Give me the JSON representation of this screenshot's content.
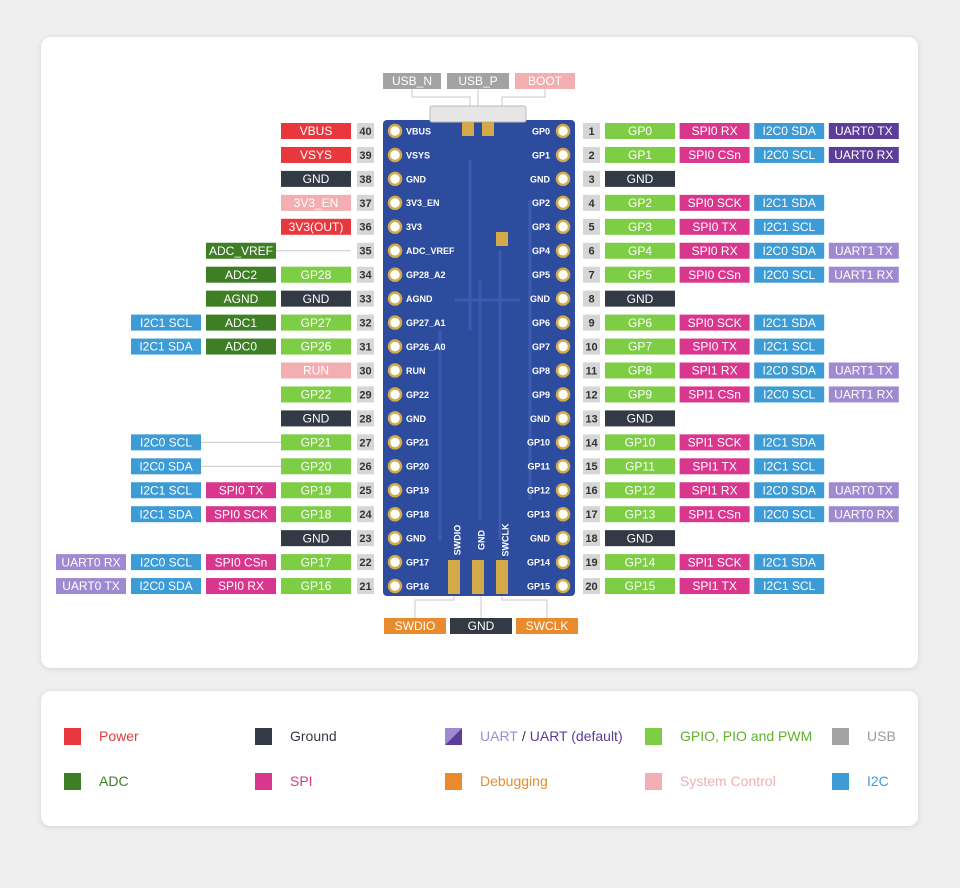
{
  "top_labels": [
    {
      "text": "USB_N",
      "color": "#a3a3a3"
    },
    {
      "text": "USB_P",
      "color": "#a3a3a3"
    },
    {
      "text": "BOOT",
      "color": "#f2aeb0"
    }
  ],
  "bottom_labels": [
    {
      "text": "SWDIO",
      "color": "#e98a2c"
    },
    {
      "text": "GND",
      "color": "#333a45"
    },
    {
      "text": "SWCLK",
      "color": "#e98a2c"
    }
  ],
  "board_bottom_pads": [
    "SWDIO",
    "GND",
    "SWCLK"
  ],
  "left_pins": [
    {
      "number": 40,
      "board_label": "VBUS",
      "labels": [
        {
          "text": "VBUS",
          "color": "#e8383d"
        }
      ]
    },
    {
      "number": 39,
      "board_label": "VSYS",
      "labels": [
        {
          "text": "VSYS",
          "color": "#e8383d"
        }
      ]
    },
    {
      "number": 38,
      "board_label": "GND",
      "labels": [
        {
          "text": "GND",
          "color": "#333a45"
        }
      ]
    },
    {
      "number": 37,
      "board_label": "3V3_EN",
      "labels": [
        {
          "text": "3V3_EN",
          "color": "#f2aeb0"
        }
      ]
    },
    {
      "number": 36,
      "board_label": "3V3",
      "labels": [
        {
          "text": "3V3(OUT)",
          "color": "#e8383d"
        }
      ]
    },
    {
      "number": 35,
      "board_label": "ADC_VREF",
      "labels": [
        null,
        {
          "text": "ADC_VREF",
          "color": "#3e7f26"
        }
      ]
    },
    {
      "number": 34,
      "board_label": "GP28_A2",
      "labels": [
        {
          "text": "GP28",
          "color": "#7dcd45"
        },
        {
          "text": "ADC2",
          "color": "#3e7f26"
        }
      ]
    },
    {
      "number": 33,
      "board_label": "AGND",
      "labels": [
        {
          "text": "GND",
          "color": "#333a45"
        },
        {
          "text": "AGND",
          "color": "#3e7f26"
        }
      ]
    },
    {
      "number": 32,
      "board_label": "GP27_A1",
      "labels": [
        {
          "text": "GP27",
          "color": "#7dcd45"
        },
        {
          "text": "ADC1",
          "color": "#3e7f26"
        },
        {
          "text": "I2C1 SCL",
          "color": "#3d9bd6"
        }
      ]
    },
    {
      "number": 31,
      "board_label": "GP26_A0",
      "labels": [
        {
          "text": "GP26",
          "color": "#7dcd45"
        },
        {
          "text": "ADC0",
          "color": "#3e7f26"
        },
        {
          "text": "I2C1 SDA",
          "color": "#3d9bd6"
        }
      ]
    },
    {
      "number": 30,
      "board_label": "RUN",
      "labels": [
        {
          "text": "RUN",
          "color": "#f2aeb0"
        }
      ]
    },
    {
      "number": 29,
      "board_label": "GP22",
      "labels": [
        {
          "text": "GP22",
          "color": "#7dcd45"
        }
      ]
    },
    {
      "number": 28,
      "board_label": "GND",
      "labels": [
        {
          "text": "GND",
          "color": "#333a45"
        }
      ]
    },
    {
      "number": 27,
      "board_label": "GP21",
      "labels": [
        {
          "text": "GP21",
          "color": "#7dcd45"
        },
        null,
        {
          "text": "I2C0 SCL",
          "color": "#3d9bd6"
        }
      ]
    },
    {
      "number": 26,
      "board_label": "GP20",
      "labels": [
        {
          "text": "GP20",
          "color": "#7dcd45"
        },
        null,
        {
          "text": "I2C0 SDA",
          "color": "#3d9bd6"
        }
      ]
    },
    {
      "number": 25,
      "board_label": "GP19",
      "labels": [
        {
          "text": "GP19",
          "color": "#7dcd45"
        },
        {
          "text": "SPI0 TX",
          "color": "#d8378d"
        },
        {
          "text": "I2C1 SCL",
          "color": "#3d9bd6"
        }
      ]
    },
    {
      "number": 24,
      "board_label": "GP18",
      "labels": [
        {
          "text": "GP18",
          "color": "#7dcd45"
        },
        {
          "text": "SPI0 SCK",
          "color": "#d8378d"
        },
        {
          "text": "I2C1 SDA",
          "color": "#3d9bd6"
        }
      ]
    },
    {
      "number": 23,
      "board_label": "GND",
      "labels": [
        {
          "text": "GND",
          "color": "#333a45"
        }
      ]
    },
    {
      "number": 22,
      "board_label": "GP17",
      "labels": [
        {
          "text": "GP17",
          "color": "#7dcd45"
        },
        {
          "text": "SPI0 CSn",
          "color": "#d8378d"
        },
        {
          "text": "I2C0 SCL",
          "color": "#3d9bd6"
        },
        {
          "text": "UART0 RX",
          "color": "#9f8ad2"
        }
      ]
    },
    {
      "number": 21,
      "board_label": "GP16",
      "labels": [
        {
          "text": "GP16",
          "color": "#7dcd45"
        },
        {
          "text": "SPI0 RX",
          "color": "#d8378d"
        },
        {
          "text": "I2C0 SDA",
          "color": "#3d9bd6"
        },
        {
          "text": "UART0 TX",
          "color": "#9f8ad2"
        }
      ]
    }
  ],
  "right_pins": [
    {
      "number": 1,
      "board_label": "GP0",
      "labels": [
        {
          "text": "GP0",
          "color": "#7dcd45"
        },
        {
          "text": "SPI0 RX",
          "color": "#d8378d"
        },
        {
          "text": "I2C0 SDA",
          "color": "#3d9bd6"
        },
        {
          "text": "UART0 TX",
          "color": "#5c3d9a"
        }
      ]
    },
    {
      "number": 2,
      "board_label": "GP1",
      "labels": [
        {
          "text": "GP1",
          "color": "#7dcd45"
        },
        {
          "text": "SPI0 CSn",
          "color": "#d8378d"
        },
        {
          "text": "I2C0 SCL",
          "color": "#3d9bd6"
        },
        {
          "text": "UART0 RX",
          "color": "#5c3d9a"
        }
      ]
    },
    {
      "number": 3,
      "board_label": "GND",
      "labels": [
        {
          "text": "GND",
          "color": "#333a45"
        }
      ]
    },
    {
      "number": 4,
      "board_label": "GP2",
      "labels": [
        {
          "text": "GP2",
          "color": "#7dcd45"
        },
        {
          "text": "SPI0 SCK",
          "color": "#d8378d"
        },
        {
          "text": "I2C1 SDA",
          "color": "#3d9bd6"
        }
      ]
    },
    {
      "number": 5,
      "board_label": "GP3",
      "labels": [
        {
          "text": "GP3",
          "color": "#7dcd45"
        },
        {
          "text": "SPI0 TX",
          "color": "#d8378d"
        },
        {
          "text": "I2C1 SCL",
          "color": "#3d9bd6"
        }
      ]
    },
    {
      "number": 6,
      "board_label": "GP4",
      "labels": [
        {
          "text": "GP4",
          "color": "#7dcd45"
        },
        {
          "text": "SPI0 RX",
          "color": "#d8378d"
        },
        {
          "text": "I2C0 SDA",
          "color": "#3d9bd6"
        },
        {
          "text": "UART1 TX",
          "color": "#9f8ad2"
        }
      ]
    },
    {
      "number": 7,
      "board_label": "GP5",
      "labels": [
        {
          "text": "GP5",
          "color": "#7dcd45"
        },
        {
          "text": "SPI0 CSn",
          "color": "#d8378d"
        },
        {
          "text": "I2C0 SCL",
          "color": "#3d9bd6"
        },
        {
          "text": "UART1 RX",
          "color": "#9f8ad2"
        }
      ]
    },
    {
      "number": 8,
      "board_label": "GND",
      "labels": [
        {
          "text": "GND",
          "color": "#333a45"
        }
      ]
    },
    {
      "number": 9,
      "board_label": "GP6",
      "labels": [
        {
          "text": "GP6",
          "color": "#7dcd45"
        },
        {
          "text": "SPI0 SCK",
          "color": "#d8378d"
        },
        {
          "text": "I2C1 SDA",
          "color": "#3d9bd6"
        }
      ]
    },
    {
      "number": 10,
      "board_label": "GP7",
      "labels": [
        {
          "text": "GP7",
          "color": "#7dcd45"
        },
        {
          "text": "SPI0 TX",
          "color": "#d8378d"
        },
        {
          "text": "I2C1 SCL",
          "color": "#3d9bd6"
        }
      ]
    },
    {
      "number": 11,
      "board_label": "GP8",
      "labels": [
        {
          "text": "GP8",
          "color": "#7dcd45"
        },
        {
          "text": "SPI1 RX",
          "color": "#d8378d"
        },
        {
          "text": "I2C0 SDA",
          "color": "#3d9bd6"
        },
        {
          "text": "UART1 TX",
          "color": "#9f8ad2"
        }
      ]
    },
    {
      "number": 12,
      "board_label": "GP9",
      "labels": [
        {
          "text": "GP9",
          "color": "#7dcd45"
        },
        {
          "text": "SPI1 CSn",
          "color": "#d8378d"
        },
        {
          "text": "I2C0 SCL",
          "color": "#3d9bd6"
        },
        {
          "text": "UART1 RX",
          "color": "#9f8ad2"
        }
      ]
    },
    {
      "number": 13,
      "board_label": "GND",
      "labels": [
        {
          "text": "GND",
          "color": "#333a45"
        }
      ]
    },
    {
      "number": 14,
      "board_label": "GP10",
      "labels": [
        {
          "text": "GP10",
          "color": "#7dcd45"
        },
        {
          "text": "SPI1 SCK",
          "color": "#d8378d"
        },
        {
          "text": "I2C1 SDA",
          "color": "#3d9bd6"
        }
      ]
    },
    {
      "number": 15,
      "board_label": "GP11",
      "labels": [
        {
          "text": "GP11",
          "color": "#7dcd45"
        },
        {
          "text": "SPI1 TX",
          "color": "#d8378d"
        },
        {
          "text": "I2C1 SCL",
          "color": "#3d9bd6"
        }
      ]
    },
    {
      "number": 16,
      "board_label": "GP12",
      "labels": [
        {
          "text": "GP12",
          "color": "#7dcd45"
        },
        {
          "text": "SPI1 RX",
          "color": "#d8378d"
        },
        {
          "text": "I2C0 SDA",
          "color": "#3d9bd6"
        },
        {
          "text": "UART0 TX",
          "color": "#9f8ad2"
        }
      ]
    },
    {
      "number": 17,
      "board_label": "GP13",
      "labels": [
        {
          "text": "GP13",
          "color": "#7dcd45"
        },
        {
          "text": "SPI1 CSn",
          "color": "#d8378d"
        },
        {
          "text": "I2C0 SCL",
          "color": "#3d9bd6"
        },
        {
          "text": "UART0 RX",
          "color": "#9f8ad2"
        }
      ]
    },
    {
      "number": 18,
      "board_label": "GND",
      "labels": [
        {
          "text": "GND",
          "color": "#333a45"
        }
      ]
    },
    {
      "number": 19,
      "board_label": "GP14",
      "labels": [
        {
          "text": "GP14",
          "color": "#7dcd45"
        },
        {
          "text": "SPI1 SCK",
          "color": "#d8378d"
        },
        {
          "text": "I2C1 SDA",
          "color": "#3d9bd6"
        }
      ]
    },
    {
      "number": 20,
      "board_label": "GP15",
      "labels": [
        {
          "text": "GP15",
          "color": "#7dcd45"
        },
        {
          "text": "SPI1 TX",
          "color": "#d8378d"
        },
        {
          "text": "I2C1 SCL",
          "color": "#3d9bd6"
        }
      ]
    }
  ],
  "legend": [
    {
      "swatch": [
        "#e8383d"
      ],
      "texts": [
        {
          "text": "Power",
          "color": "#e8383d"
        }
      ]
    },
    {
      "swatch": [
        "#333a45"
      ],
      "texts": [
        {
          "text": "Ground",
          "color": "#333a45"
        }
      ]
    },
    {
      "swatch": [
        "#9f8ad2",
        "#5c3d9a"
      ],
      "texts": [
        {
          "text": "UART",
          "color": "#9f8ad2"
        },
        {
          "text": "/",
          "color": "#333a45"
        },
        {
          "text": "UART (default)",
          "color": "#5c3d9a"
        }
      ]
    },
    {
      "swatch": [
        "#7dcd45"
      ],
      "texts": [
        {
          "text": "GPIO, PIO and PWM",
          "color": "#5fb12a"
        }
      ]
    },
    {
      "swatch": [
        "#a3a3a3"
      ],
      "texts": [
        {
          "text": "USB",
          "color": "#999999"
        }
      ]
    },
    {
      "swatch": [
        "#3e7f26"
      ],
      "texts": [
        {
          "text": "ADC",
          "color": "#3e7f26"
        }
      ]
    },
    {
      "swatch": [
        "#d8378d"
      ],
      "texts": [
        {
          "text": "SPI",
          "color": "#d8378d"
        }
      ]
    },
    {
      "swatch": [
        "#e98a2c"
      ],
      "texts": [
        {
          "text": "Debugging",
          "color": "#e98a2c"
        }
      ]
    },
    {
      "swatch": [
        "#f2aeb0"
      ],
      "texts": [
        {
          "text": "System Control",
          "color": "#f2aeb0"
        }
      ]
    },
    {
      "swatch": [
        "#3d9bd6"
      ],
      "texts": [
        {
          "text": "I2C",
          "color": "#3d9bd6"
        }
      ]
    }
  ]
}
